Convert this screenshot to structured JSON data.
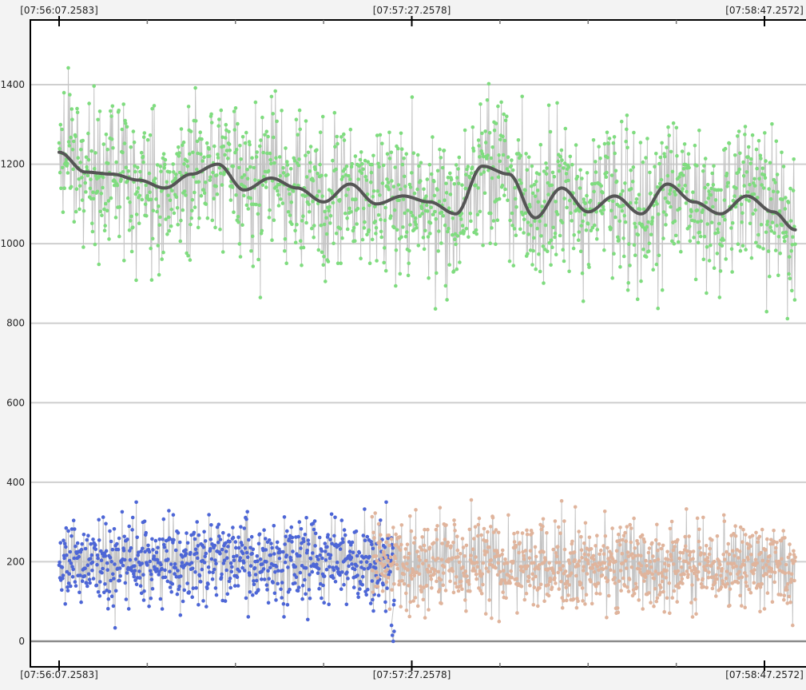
{
  "chart_data": {
    "type": "scatter",
    "title": "",
    "xlabel": "",
    "ylabel": "",
    "ylim": [
      0,
      1500
    ],
    "y_ticks": [
      0,
      200,
      400,
      600,
      800,
      1000,
      1200,
      1400
    ],
    "x_tick_labels": [
      "[07:56:07.2583]",
      "[07:57:27.2578]",
      "[07:58:47.2572]"
    ],
    "x_tick_times_s": [
      0,
      80,
      160
    ],
    "x_range_s": [
      -6.5,
      168.5
    ],
    "grid": true,
    "legend": "none",
    "colors": {
      "background": "#ffffff",
      "grid": "#cfcfcf",
      "raw_line": "#c4c4c4",
      "green": "#7fdc7f",
      "blue": "#4d66d6",
      "peach": "#e0b49c",
      "smooth": "#555555"
    },
    "series": [
      {
        "marker_color": "#7fdc7f",
        "t": [
          0,
          6,
          12,
          18,
          24,
          30,
          36,
          42,
          48,
          54,
          60,
          66,
          72,
          78,
          84,
          90,
          96,
          102,
          108,
          114,
          120,
          126,
          132,
          138,
          144,
          150,
          156,
          162,
          167
        ],
        "y": [
          1230,
          1180,
          1175,
          1160,
          1140,
          1175,
          1200,
          1135,
          1165,
          1140,
          1105,
          1150,
          1100,
          1120,
          1105,
          1075,
          1195,
          1175,
          1065,
          1140,
          1080,
          1120,
          1075,
          1150,
          1105,
          1075,
          1120,
          1080,
          1035
        ],
        "ymin": 790,
        "ymax": 1500
      },
      {
        "marker_color": "#4d66d6",
        "t": [
          0,
          10,
          20,
          30,
          40,
          50,
          60,
          70,
          76
        ],
        "y": [
          205,
          195,
          200,
          200,
          205,
          195,
          200,
          190,
          180
        ],
        "ymin": 0,
        "ymax": 350
      },
      {
        "marker_color": "#e0b49c",
        "t": [
          71,
          80,
          90,
          100,
          110,
          120,
          130,
          140,
          150,
          160,
          167
        ],
        "y": [
          200,
          195,
          190,
          195,
          190,
          185,
          190,
          185,
          195,
          190,
          180
        ],
        "ymin": 40,
        "ymax": 370
      }
    ]
  }
}
